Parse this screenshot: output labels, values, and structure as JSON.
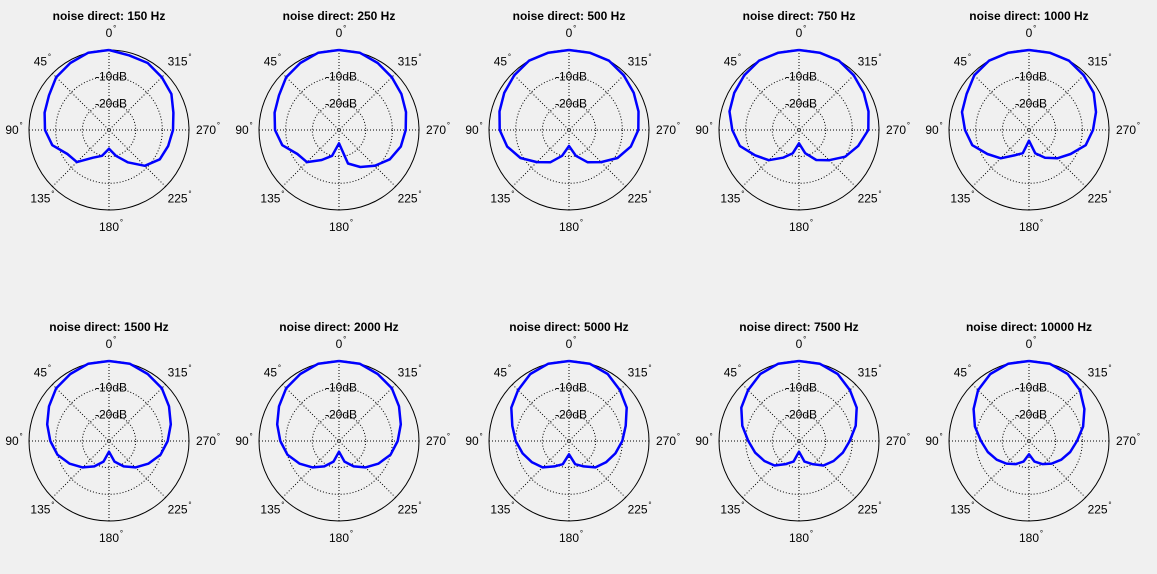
{
  "chart_data": {
    "type": "polar",
    "grid": true,
    "radial_unit": "dB",
    "radial_ticks": [
      {
        "db": -10,
        "label": "-10dB"
      },
      {
        "db": -20,
        "label": "-20dB"
      }
    ],
    "radial_range_db": [
      -30,
      0
    ],
    "angle_ticks": [
      {
        "deg": 0,
        "label": "0"
      },
      {
        "deg": 45,
        "label": "45"
      },
      {
        "deg": 90,
        "label": "90"
      },
      {
        "deg": 135,
        "label": "135"
      },
      {
        "deg": 180,
        "label": "180"
      },
      {
        "deg": 225,
        "label": "225"
      },
      {
        "deg": 270,
        "label": "270"
      },
      {
        "deg": 315,
        "label": "315"
      }
    ],
    "degree_symbol": "°",
    "line_color": "#0000ff",
    "angles_deg": [
      0,
      15,
      30,
      45,
      60,
      75,
      90,
      105,
      120,
      135,
      150,
      165,
      180,
      195,
      210,
      225,
      240,
      255,
      270,
      285,
      300,
      315,
      330,
      345
    ],
    "plots": [
      {
        "title": "noise direct: 150 Hz",
        "values_db": [
          0,
          0,
          -1,
          -2,
          -4,
          -5,
          -6,
          -8,
          -12,
          -13,
          -18,
          -20,
          -23,
          -20,
          -16,
          -11,
          -8,
          -7,
          -6,
          -5,
          -3,
          -2,
          -1,
          -1
        ]
      },
      {
        "title": "noise direct: 250 Hz",
        "values_db": [
          0,
          0,
          -1,
          -2,
          -4,
          -5,
          -6,
          -8,
          -12,
          -13,
          -17,
          -20,
          -25,
          -17,
          -14,
          -11,
          -8,
          -6,
          -5,
          -4,
          -3,
          -2,
          -1,
          0
        ]
      },
      {
        "title": "noise direct: 500 Hz",
        "values_db": [
          0,
          0,
          0,
          -1,
          -2,
          -3,
          -4,
          -6,
          -9,
          -13,
          -16,
          -20,
          -24,
          -20,
          -16,
          -13,
          -9,
          -6,
          -4,
          -3,
          -2,
          -1,
          0,
          0
        ]
      },
      {
        "title": "noise direct: 750 Hz",
        "values_db": [
          0,
          0,
          0,
          -1,
          -2,
          -3,
          -5,
          -7,
          -11,
          -14,
          -18,
          -21,
          -25,
          -21,
          -17,
          -14,
          -10,
          -7,
          -4,
          -3,
          -2,
          -1,
          0,
          0
        ]
      },
      {
        "title": "noise direct: 1000 Hz",
        "values_db": [
          0,
          0,
          0,
          -1,
          -3,
          -4,
          -6,
          -8,
          -12,
          -15,
          -19,
          -21,
          -26,
          -21,
          -18,
          -15,
          -12,
          -8,
          -6,
          -4,
          -2,
          -1,
          0,
          0
        ]
      },
      {
        "title": "noise direct: 1500 Hz",
        "values_db": [
          0,
          0,
          -1,
          -2,
          -4,
          -6,
          -8,
          -10,
          -13,
          -16,
          -19,
          -22,
          -26,
          -22,
          -19,
          -16,
          -13,
          -10,
          -8,
          -6,
          -4,
          -2,
          -1,
          0
        ]
      },
      {
        "title": "noise direct: 2000 Hz",
        "values_db": [
          0,
          0,
          -1,
          -2,
          -4,
          -6,
          -8,
          -10,
          -13,
          -16,
          -19,
          -22,
          -26,
          -22,
          -19,
          -16,
          -13,
          -10,
          -8,
          -6,
          -4,
          -2,
          -1,
          0
        ]
      },
      {
        "title": "noise direct: 5000 Hz",
        "values_db": [
          0,
          0,
          -1,
          -3,
          -5,
          -8,
          -10,
          -12,
          -14,
          -16,
          -19,
          -21,
          -25,
          -21,
          -19,
          -16,
          -14,
          -12,
          -10,
          -8,
          -5,
          -3,
          -1,
          0
        ]
      },
      {
        "title": "noise direct: 7500 Hz",
        "values_db": [
          0,
          0,
          -1,
          -3,
          -5,
          -8,
          -11,
          -13,
          -15,
          -17,
          -20,
          -22,
          -26,
          -22,
          -20,
          -17,
          -15,
          -13,
          -11,
          -8,
          -5,
          -3,
          -1,
          0
        ]
      },
      {
        "title": "noise direct: 10000 Hz",
        "values_db": [
          0,
          0,
          -1,
          -3,
          -6,
          -9,
          -12,
          -14,
          -16,
          -18,
          -20,
          -22,
          -25,
          -22,
          -20,
          -18,
          -16,
          -14,
          -12,
          -9,
          -6,
          -3,
          -1,
          0
        ]
      }
    ]
  }
}
